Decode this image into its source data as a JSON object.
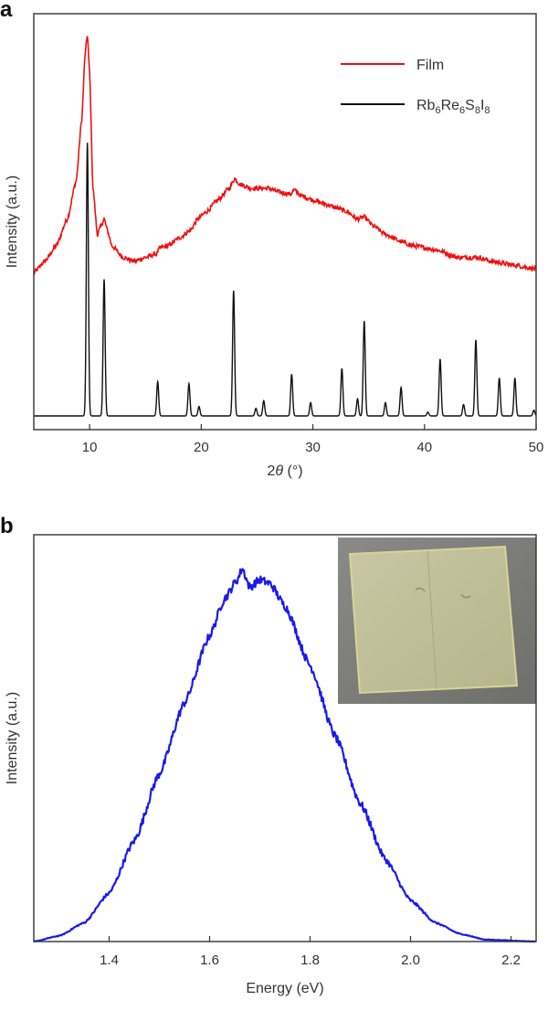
{
  "chart_data": [
    {
      "panel": "a",
      "type": "line",
      "xlabel_prefix": "2",
      "xlabel_symbol": "θ",
      "xlabel_suffix": " (°)",
      "ylabel": "Intensity (a.u.)",
      "xlim": [
        5,
        50
      ],
      "xticks": [
        10,
        20,
        30,
        40,
        50
      ],
      "legend_position": "top-right",
      "series": [
        {
          "name": "Film",
          "color": "#ee1111",
          "baseline": 0.38,
          "points": [
            [
              5,
              0.38
            ],
            [
              6,
              0.41
            ],
            [
              7,
              0.45
            ],
            [
              8,
              0.52
            ],
            [
              8.8,
              0.62
            ],
            [
              9.3,
              0.78
            ],
            [
              9.6,
              0.95
            ],
            [
              9.8,
              1.0
            ],
            [
              10.0,
              0.9
            ],
            [
              10.3,
              0.6
            ],
            [
              10.7,
              0.48
            ],
            [
              11.0,
              0.5
            ],
            [
              11.3,
              0.52
            ],
            [
              11.6,
              0.49
            ],
            [
              12.0,
              0.45
            ],
            [
              13,
              0.42
            ],
            [
              14,
              0.41
            ],
            [
              15,
              0.42
            ],
            [
              16,
              0.43
            ],
            [
              16.3,
              0.445
            ],
            [
              17,
              0.45
            ],
            [
              18,
              0.47
            ],
            [
              19,
              0.49
            ],
            [
              19.7,
              0.52
            ],
            [
              20.5,
              0.54
            ],
            [
              21.5,
              0.57
            ],
            [
              22.5,
              0.6
            ],
            [
              23.0,
              0.625
            ],
            [
              23.5,
              0.61
            ],
            [
              24.5,
              0.6
            ],
            [
              26,
              0.6
            ],
            [
              27,
              0.59
            ],
            [
              28,
              0.585
            ],
            [
              28.3,
              0.595
            ],
            [
              29,
              0.58
            ],
            [
              30,
              0.57
            ],
            [
              31,
              0.56
            ],
            [
              32,
              0.55
            ],
            [
              33,
              0.54
            ],
            [
              34,
              0.52
            ],
            [
              34.6,
              0.525
            ],
            [
              35.5,
              0.5
            ],
            [
              36.5,
              0.48
            ],
            [
              38,
              0.46
            ],
            [
              39,
              0.45
            ],
            [
              41,
              0.44
            ],
            [
              43,
              0.42
            ],
            [
              44.8,
              0.42
            ],
            [
              46,
              0.41
            ],
            [
              48,
              0.4
            ],
            [
              50,
              0.39
            ]
          ]
        },
        {
          "name": "Rb6Re6S8I8",
          "name_parts": [
            [
              "Rb",
              ""
            ],
            [
              "6",
              "sub"
            ],
            [
              "Re",
              ""
            ],
            [
              "6",
              "sub"
            ],
            [
              "S",
              ""
            ],
            [
              "8",
              "sub"
            ],
            [
              "I",
              ""
            ],
            [
              "8",
              "sub"
            ]
          ],
          "color": "#111111",
          "baseline": 0.0,
          "peaks": [
            [
              9.8,
              0.72
            ],
            [
              11.3,
              0.36
            ],
            [
              16.1,
              0.09
            ],
            [
              18.9,
              0.085
            ],
            [
              19.8,
              0.025
            ],
            [
              22.9,
              0.33
            ],
            [
              24.9,
              0.02
            ],
            [
              25.6,
              0.04
            ],
            [
              28.1,
              0.11
            ],
            [
              29.8,
              0.035
            ],
            [
              32.6,
              0.125
            ],
            [
              34.0,
              0.045
            ],
            [
              34.6,
              0.25
            ],
            [
              36.5,
              0.035
            ],
            [
              37.9,
              0.075
            ],
            [
              40.3,
              0.01
            ],
            [
              41.4,
              0.15
            ],
            [
              43.5,
              0.03
            ],
            [
              44.6,
              0.2
            ],
            [
              46.7,
              0.1
            ],
            [
              48.1,
              0.1
            ],
            [
              49.8,
              0.015
            ]
          ]
        }
      ]
    },
    {
      "panel": "b",
      "type": "line",
      "xlabel": "Energy (eV)",
      "ylabel": "Intensity (a.u.)",
      "xlim": [
        1.25,
        2.25
      ],
      "xticks": [
        1.4,
        1.6,
        1.8,
        2.0,
        2.2
      ],
      "xtick_labels": [
        "1.4",
        "1.6",
        "1.8",
        "2.0",
        "2.2"
      ],
      "inset_photo": true,
      "series": [
        {
          "name": "",
          "color": "#1a1aee",
          "points": [
            [
              1.25,
              0.0
            ],
            [
              1.3,
              0.015
            ],
            [
              1.35,
              0.05
            ],
            [
              1.4,
              0.13
            ],
            [
              1.45,
              0.27
            ],
            [
              1.5,
              0.45
            ],
            [
              1.55,
              0.64
            ],
            [
              1.6,
              0.82
            ],
            [
              1.63,
              0.92
            ],
            [
              1.655,
              0.97
            ],
            [
              1.665,
              1.0
            ],
            [
              1.68,
              0.95
            ],
            [
              1.7,
              0.97
            ],
            [
              1.72,
              0.96
            ],
            [
              1.75,
              0.9
            ],
            [
              1.8,
              0.74
            ],
            [
              1.85,
              0.55
            ],
            [
              1.9,
              0.37
            ],
            [
              1.95,
              0.22
            ],
            [
              2.0,
              0.11
            ],
            [
              2.05,
              0.05
            ],
            [
              2.1,
              0.02
            ],
            [
              2.15,
              0.005
            ],
            [
              2.25,
              0.0
            ]
          ]
        }
      ]
    }
  ]
}
